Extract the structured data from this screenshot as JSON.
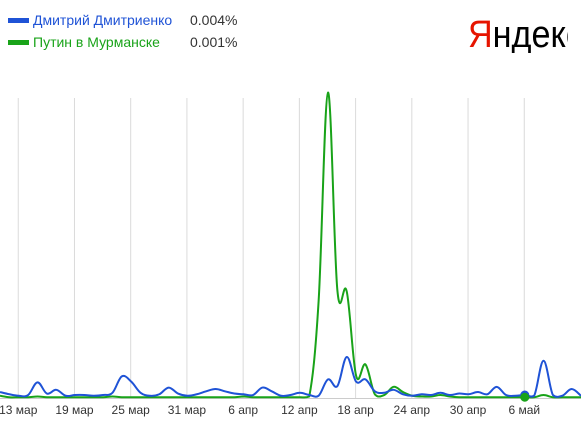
{
  "brand": {
    "logo_text": "Яндекс",
    "logo_first_letter_color": "#e61400",
    "logo_rest_color": "#000000"
  },
  "legend": [
    {
      "name": "Дмитрий Дмитриенко",
      "value": "0.004%",
      "color": "#1f53d6"
    },
    {
      "name": "Путин в Мурманске",
      "value": "0.001%",
      "color": "#19a319"
    }
  ],
  "chart_data": {
    "type": "line",
    "x_tick_labels": [
      "13 мар",
      "19 мар",
      "25 мар",
      "31 мар",
      "6 апр",
      "12 апр",
      "18 апр",
      "24 апр",
      "30 апр",
      "6 май"
    ],
    "x_start": "2011-03-11",
    "x_end": "2011-05-12",
    "y_range": [
      0,
      0.04
    ],
    "grid": true,
    "legend_position": "top-left",
    "series": [
      {
        "name": "Дмитрий Дмитриенко",
        "color": "#1f53d6",
        "last_value_marker": true,
        "points": [
          [
            "2011-03-11",
            0.0008
          ],
          [
            "2011-03-12",
            0.0005
          ],
          [
            "2011-03-13",
            0.0003
          ],
          [
            "2011-03-14",
            0.0004
          ],
          [
            "2011-03-15",
            0.0021
          ],
          [
            "2011-03-16",
            0.0006
          ],
          [
            "2011-03-17",
            0.0011
          ],
          [
            "2011-03-18",
            0.0003
          ],
          [
            "2011-03-19",
            0.0004
          ],
          [
            "2011-03-20",
            0.0004
          ],
          [
            "2011-03-21",
            0.0003
          ],
          [
            "2011-03-22",
            0.0004
          ],
          [
            "2011-03-23",
            0.0007
          ],
          [
            "2011-03-24",
            0.0029
          ],
          [
            "2011-03-25",
            0.0022
          ],
          [
            "2011-03-26",
            0.0007
          ],
          [
            "2011-03-27",
            0.0003
          ],
          [
            "2011-03-28",
            0.0005
          ],
          [
            "2011-03-29",
            0.0014
          ],
          [
            "2011-03-30",
            0.0006
          ],
          [
            "2011-03-31",
            0.0003
          ],
          [
            "2011-04-01",
            0.0005
          ],
          [
            "2011-04-02",
            0.0009
          ],
          [
            "2011-04-03",
            0.0012
          ],
          [
            "2011-04-04",
            0.0009
          ],
          [
            "2011-04-05",
            0.0006
          ],
          [
            "2011-04-06",
            0.0005
          ],
          [
            "2011-04-07",
            0.0004
          ],
          [
            "2011-04-08",
            0.0014
          ],
          [
            "2011-04-09",
            0.0009
          ],
          [
            "2011-04-10",
            0.0003
          ],
          [
            "2011-04-11",
            0.0004
          ],
          [
            "2011-04-12",
            0.0007
          ],
          [
            "2011-04-13",
            0.0004
          ],
          [
            "2011-04-14",
            0.0003
          ],
          [
            "2011-04-15",
            0.0025
          ],
          [
            "2011-04-16",
            0.0016
          ],
          [
            "2011-04-17",
            0.0055
          ],
          [
            "2011-04-18",
            0.0022
          ],
          [
            "2011-04-19",
            0.0025
          ],
          [
            "2011-04-20",
            0.0009
          ],
          [
            "2011-04-21",
            0.0007
          ],
          [
            "2011-04-22",
            0.0011
          ],
          [
            "2011-04-23",
            0.0005
          ],
          [
            "2011-04-24",
            0.0003
          ],
          [
            "2011-04-25",
            0.0005
          ],
          [
            "2011-04-26",
            0.0004
          ],
          [
            "2011-04-27",
            0.0007
          ],
          [
            "2011-04-28",
            0.0004
          ],
          [
            "2011-04-29",
            0.0006
          ],
          [
            "2011-04-30",
            0.0005
          ],
          [
            "2011-05-01",
            0.0008
          ],
          [
            "2011-05-02",
            0.0005
          ],
          [
            "2011-05-03",
            0.0015
          ],
          [
            "2011-05-04",
            0.0004
          ],
          [
            "2011-05-05",
            0.0003
          ],
          [
            "2011-05-06",
            0.0004
          ],
          [
            "2011-05-07",
            0.0003
          ],
          [
            "2011-05-08",
            0.005
          ],
          [
            "2011-05-09",
            0.0004
          ],
          [
            "2011-05-10",
            0.0003
          ],
          [
            "2011-05-11",
            0.0012
          ],
          [
            "2011-05-12",
            0.0003
          ]
        ]
      },
      {
        "name": "Путин в Мурманске",
        "color": "#19a319",
        "last_value_marker": true,
        "points": [
          [
            "2011-03-11",
            0.0003
          ],
          [
            "2011-03-12",
            0.0001
          ],
          [
            "2011-03-13",
            0.0001
          ],
          [
            "2011-03-14",
            0.0001
          ],
          [
            "2011-03-15",
            0.0002
          ],
          [
            "2011-03-16",
            0.0001
          ],
          [
            "2011-03-17",
            0.0001
          ],
          [
            "2011-03-18",
            0.0001
          ],
          [
            "2011-03-19",
            0.0001
          ],
          [
            "2011-03-20",
            0.0001
          ],
          [
            "2011-03-21",
            0.0001
          ],
          [
            "2011-03-22",
            0.0001
          ],
          [
            "2011-03-23",
            0.0002
          ],
          [
            "2011-03-24",
            0.0001
          ],
          [
            "2011-03-25",
            0.0001
          ],
          [
            "2011-03-26",
            0.0001
          ],
          [
            "2011-03-27",
            0.0001
          ],
          [
            "2011-03-28",
            0.0001
          ],
          [
            "2011-03-29",
            0.0001
          ],
          [
            "2011-03-30",
            0.0001
          ],
          [
            "2011-03-31",
            0.0001
          ],
          [
            "2011-04-01",
            0.0001
          ],
          [
            "2011-04-02",
            0.0001
          ],
          [
            "2011-04-03",
            0.0001
          ],
          [
            "2011-04-04",
            0.0001
          ],
          [
            "2011-04-05",
            0.0001
          ],
          [
            "2011-04-06",
            0.0002
          ],
          [
            "2011-04-07",
            0.0001
          ],
          [
            "2011-04-08",
            0.0001
          ],
          [
            "2011-04-09",
            0.0001
          ],
          [
            "2011-04-10",
            0.0001
          ],
          [
            "2011-04-11",
            0.0001
          ],
          [
            "2011-04-12",
            0.0001
          ],
          [
            "2011-04-13",
            0.0002
          ],
          [
            "2011-04-14",
            0.013
          ],
          [
            "2011-04-15",
            0.041
          ],
          [
            "2011-04-16",
            0.0145
          ],
          [
            "2011-04-17",
            0.0143
          ],
          [
            "2011-04-18",
            0.003
          ],
          [
            "2011-04-19",
            0.0045
          ],
          [
            "2011-04-20",
            0.0005
          ],
          [
            "2011-04-21",
            0.0004
          ],
          [
            "2011-04-22",
            0.0015
          ],
          [
            "2011-04-23",
            0.0008
          ],
          [
            "2011-04-24",
            0.0003
          ],
          [
            "2011-04-25",
            0.0002
          ],
          [
            "2011-04-26",
            0.0002
          ],
          [
            "2011-04-27",
            0.0004
          ],
          [
            "2011-04-28",
            0.0002
          ],
          [
            "2011-04-29",
            0.0001
          ],
          [
            "2011-04-30",
            0.0001
          ],
          [
            "2011-05-01",
            0.0001
          ],
          [
            "2011-05-02",
            0.0001
          ],
          [
            "2011-05-03",
            0.0001
          ],
          [
            "2011-05-04",
            0.0001
          ],
          [
            "2011-05-05",
            0.0001
          ],
          [
            "2011-05-06",
            0.0001
          ],
          [
            "2011-05-07",
            0.0001
          ],
          [
            "2011-05-08",
            0.0004
          ],
          [
            "2011-05-09",
            0.0001
          ],
          [
            "2011-05-10",
            0.0001
          ],
          [
            "2011-05-11",
            0.0001
          ],
          [
            "2011-05-12",
            0.0001
          ]
        ]
      }
    ]
  }
}
